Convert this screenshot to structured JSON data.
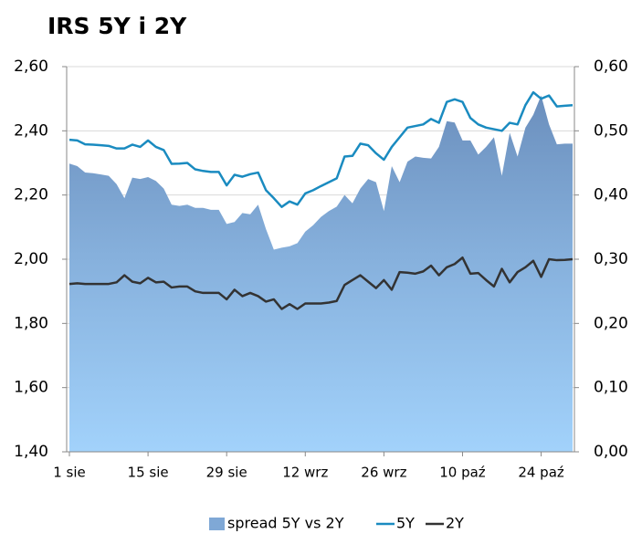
{
  "chart_data": {
    "type": "line",
    "title": "IRS 5Y i 2Y",
    "categories": [
      "1 sie",
      null,
      null,
      null,
      null,
      null,
      null,
      null,
      null,
      null,
      "15 sie",
      null,
      null,
      null,
      null,
      null,
      null,
      null,
      null,
      null,
      "29 sie",
      null,
      null,
      null,
      null,
      null,
      null,
      null,
      null,
      null,
      "12 wrz",
      null,
      null,
      null,
      null,
      null,
      null,
      null,
      null,
      null,
      "26 wrz",
      null,
      null,
      null,
      null,
      null,
      null,
      null,
      null,
      null,
      "10 paź",
      null,
      null,
      null,
      null,
      null,
      null,
      null,
      null,
      null,
      "24 paź",
      null,
      null,
      null,
      null
    ],
    "series": [
      {
        "name": "spread 5Y vs 2Y",
        "type": "area",
        "axis": "y2",
        "color": "#7fa8d6",
        "values": [
          0.449,
          0.445,
          0.435,
          0.434,
          0.432,
          0.43,
          0.417,
          0.395,
          0.427,
          0.425,
          0.428,
          0.422,
          0.41,
          0.385,
          0.383,
          0.385,
          0.38,
          0.38,
          0.377,
          0.377,
          0.355,
          0.358,
          0.372,
          0.37,
          0.385,
          0.347,
          0.315,
          0.318,
          0.32,
          0.325,
          0.343,
          0.353,
          0.366,
          0.375,
          0.382,
          0.4,
          0.387,
          0.41,
          0.425,
          0.42,
          0.375,
          0.445,
          0.42,
          0.452,
          0.46,
          0.458,
          0.457,
          0.475,
          0.515,
          0.513,
          0.485,
          0.485,
          0.463,
          0.475,
          0.49,
          0.43,
          0.497,
          0.46,
          0.505,
          0.525,
          0.555,
          0.51,
          0.479,
          0.48,
          0.48
        ]
      },
      {
        "name": "5Y",
        "color": "#1a8bc0",
        "values": [
          2.372,
          2.37,
          2.358,
          2.357,
          2.355,
          2.353,
          2.345,
          2.345,
          2.357,
          2.35,
          2.37,
          2.35,
          2.34,
          2.297,
          2.298,
          2.3,
          2.28,
          2.275,
          2.272,
          2.272,
          2.23,
          2.263,
          2.257,
          2.265,
          2.27,
          2.215,
          2.19,
          2.163,
          2.18,
          2.17,
          2.205,
          2.215,
          2.228,
          2.24,
          2.252,
          2.32,
          2.322,
          2.36,
          2.355,
          2.33,
          2.31,
          2.35,
          2.38,
          2.41,
          2.415,
          2.42,
          2.437,
          2.425,
          2.49,
          2.498,
          2.49,
          2.44,
          2.42,
          2.41,
          2.405,
          2.4,
          2.425,
          2.42,
          2.48,
          2.52,
          2.5,
          2.51,
          2.476,
          2.478,
          2.48
        ]
      },
      {
        "name": "2Y",
        "color": "#333333",
        "values": [
          1.923,
          1.925,
          1.923,
          1.923,
          1.923,
          1.923,
          1.928,
          1.95,
          1.93,
          1.925,
          1.942,
          1.928,
          1.93,
          1.912,
          1.915,
          1.915,
          1.9,
          1.895,
          1.895,
          1.895,
          1.875,
          1.905,
          1.885,
          1.895,
          1.885,
          1.868,
          1.875,
          1.845,
          1.86,
          1.845,
          1.862,
          1.862,
          1.862,
          1.865,
          1.87,
          1.92,
          1.935,
          1.95,
          1.93,
          1.91,
          1.935,
          1.905,
          1.96,
          1.958,
          1.955,
          1.962,
          1.98,
          1.95,
          1.975,
          1.985,
          2.005,
          1.955,
          1.957,
          1.935,
          1.915,
          1.97,
          1.928,
          1.96,
          1.975,
          1.995,
          1.945,
          2.0,
          1.997,
          1.998,
          2.0
        ]
      }
    ],
    "ylim": [
      1.4,
      2.6
    ],
    "yticks": [
      {
        "value": 1.4,
        "label": "1,40"
      },
      {
        "value": 1.6,
        "label": "1,60"
      },
      {
        "value": 1.8,
        "label": "1,80"
      },
      {
        "value": 2.0,
        "label": "2,00"
      },
      {
        "value": 2.2,
        "label": "2,20"
      },
      {
        "value": 2.4,
        "label": "2,40"
      },
      {
        "value": 2.6,
        "label": "2,60"
      }
    ],
    "y2lim": [
      0,
      0.6
    ],
    "y2ticks": [
      {
        "value": 0,
        "label": "0,00"
      },
      {
        "value": 0.1,
        "label": "0,10"
      },
      {
        "value": 0.2,
        "label": "0,20"
      },
      {
        "value": 0.3,
        "label": "0,30"
      },
      {
        "value": 0.4,
        "label": "0,40"
      },
      {
        "value": 0.5,
        "label": "0,50"
      },
      {
        "value": 0.6,
        "label": "0,60"
      }
    ],
    "grid": true,
    "legend": "bottom"
  }
}
